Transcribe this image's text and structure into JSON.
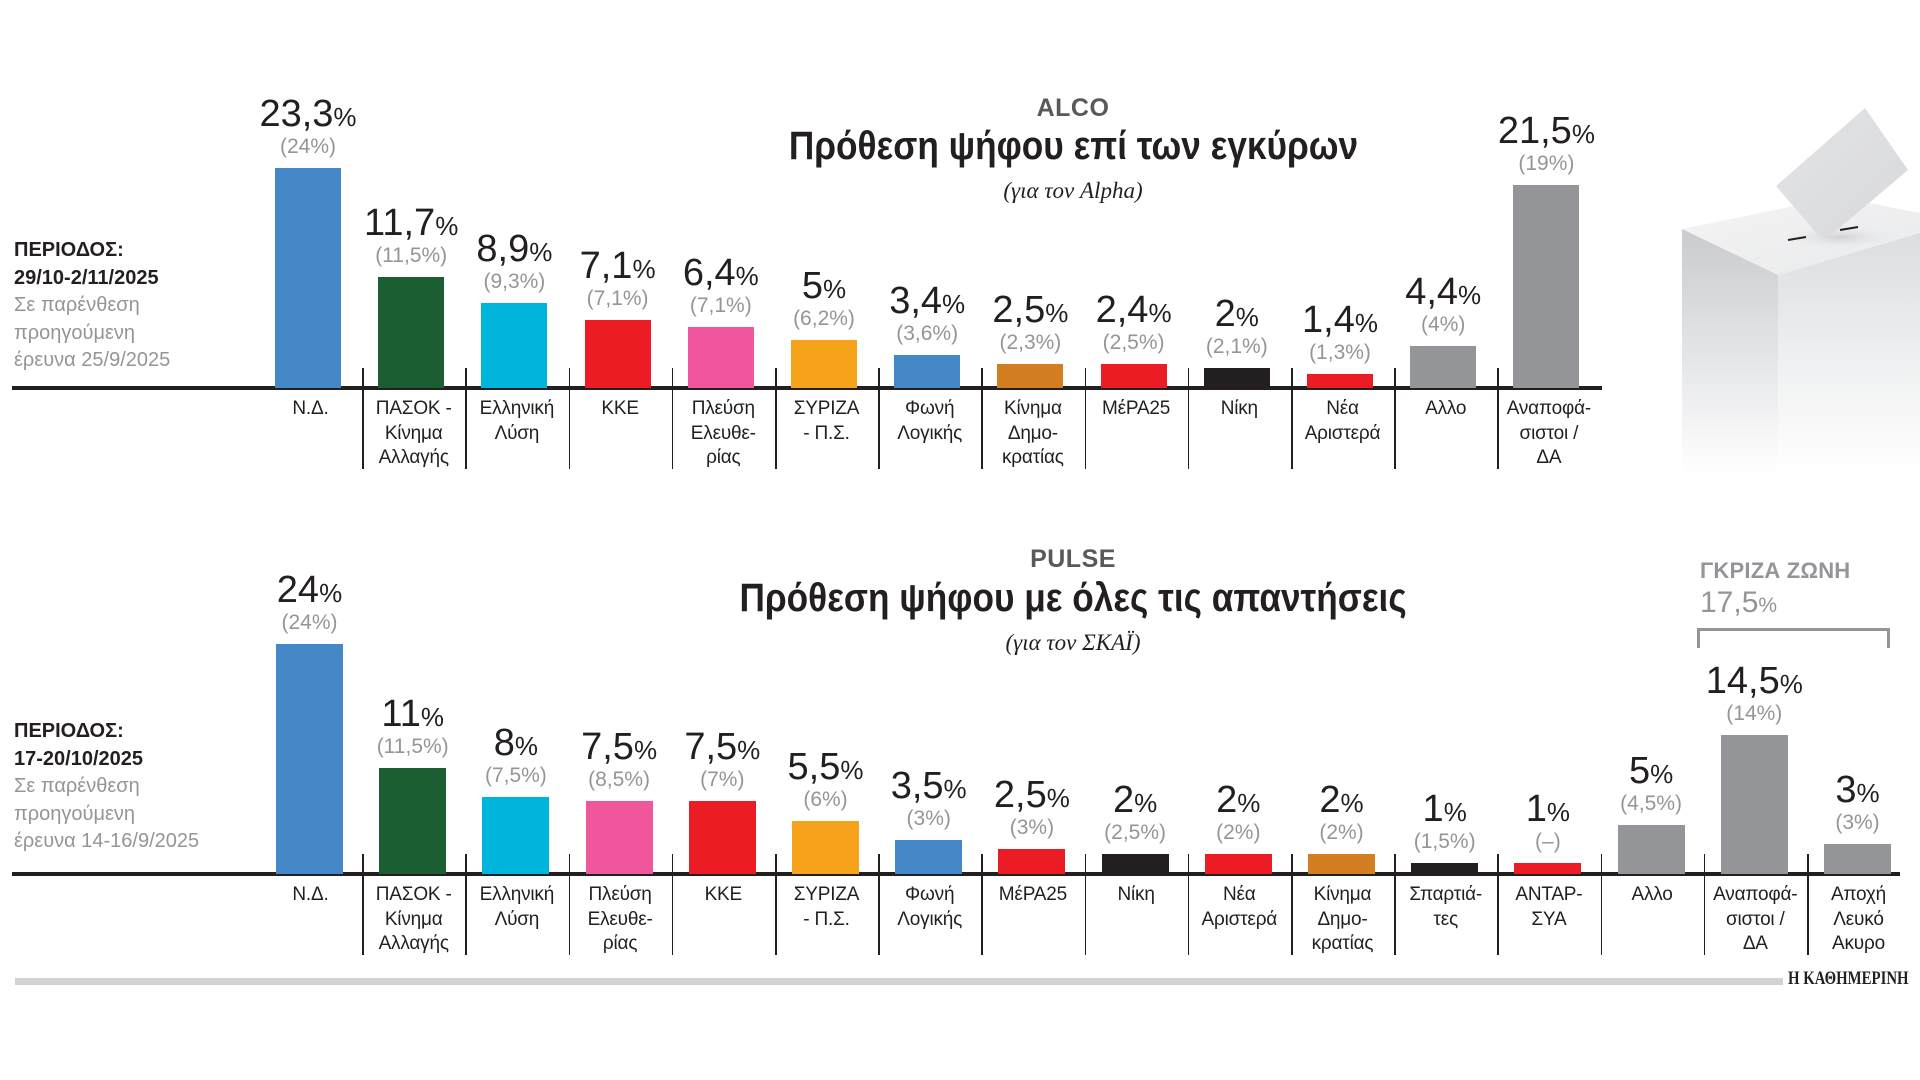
{
  "chart_data": [
    {
      "type": "bar",
      "pollster": "ALCO",
      "title": "Πρόθεση ψήφου επί των εγκύρων",
      "subtitle": "(για τον Alpha)",
      "period_heading": "ΠΕΡΙΟΔΟΣ:",
      "period_dates": "29/10-2/11/2025",
      "note_lines": [
        "Σε παρένθεση",
        "προηγούμενη",
        "έρευνα 25/9/2025"
      ],
      "xlabel": "",
      "ylabel": "",
      "ylim": [
        0,
        25
      ],
      "grid": false,
      "categories": [
        [
          "Ν.Δ."
        ],
        [
          "ΠΑΣΟΚ -",
          "Κίνημα",
          "Αλλαγής"
        ],
        [
          "Ελληνική",
          "Λύση"
        ],
        [
          "ΚΚΕ"
        ],
        [
          "Πλεύση",
          "Ελευθε-",
          "ρίας"
        ],
        [
          "ΣΥΡΙΖΑ",
          "- Π.Σ."
        ],
        [
          "Φωνή",
          "Λογικής"
        ],
        [
          "Κίνημα",
          "Δημο-",
          "κρατίας"
        ],
        [
          "ΜέΡΑ25"
        ],
        [
          "Νίκη"
        ],
        [
          "Νέα",
          "Αριστερά"
        ],
        [
          "Αλλο"
        ],
        [
          "Αναποφά-",
          "σιστοι /",
          "ΔΑ"
        ]
      ],
      "series": [
        {
          "name": "current",
          "values": [
            23.3,
            11.7,
            8.9,
            7.1,
            6.4,
            5,
            3.4,
            2.5,
            2.4,
            2,
            1.4,
            4.4,
            21.5
          ],
          "labels": [
            "23,3%",
            "11,7%",
            "8,9%",
            "7,1%",
            "6,4%",
            "5%",
            "3,4%",
            "2,5%",
            "2,4%",
            "2%",
            "1,4%",
            "4,4%",
            "21,5%"
          ]
        },
        {
          "name": "previous",
          "values": [
            24,
            11.5,
            9.3,
            7.1,
            7.1,
            6.2,
            3.6,
            2.3,
            2.5,
            2.1,
            1.3,
            4,
            19
          ],
          "labels": [
            "(24%)",
            "(11,5%)",
            "(9,3%)",
            "(7,1%)",
            "(7,1%)",
            "(6,2%)",
            "(3,6%)",
            "(2,3%)",
            "(2,5%)",
            "(2,1%)",
            "(1,3%)",
            "(4%)",
            "(19%)"
          ]
        }
      ],
      "colors": [
        "#4588c8",
        "#1a5e32",
        "#00b5dc",
        "#ec1c24",
        "#ef569c",
        "#f7a21b",
        "#4588c8",
        "#d37e20",
        "#ec1c24",
        "#231f20",
        "#ec1c24",
        "#939598",
        "#939598"
      ]
    },
    {
      "type": "bar",
      "pollster": "PULSE",
      "title": "Πρόθεση ψήφου με όλες τις απαντήσεις",
      "subtitle": "(για τον ΣΚΑΪ)",
      "period_heading": "ΠΕΡΙΟΔΟΣ:",
      "period_dates": "17-20/10/2025",
      "note_lines": [
        "Σε παρένθεση",
        "προηγούμενη",
        "έρευνα 14-16/9/2025"
      ],
      "xlabel": "",
      "ylabel": "",
      "ylim": [
        0,
        25
      ],
      "grid": false,
      "categories": [
        [
          "Ν.Δ."
        ],
        [
          "ΠΑΣΟΚ -",
          "Κίνημα",
          "Αλλαγής"
        ],
        [
          "Ελληνική",
          "Λύση"
        ],
        [
          "Πλεύση",
          "Ελευθε-",
          "ρίας"
        ],
        [
          "ΚΚΕ"
        ],
        [
          "ΣΥΡΙΖΑ",
          "- Π.Σ."
        ],
        [
          "Φωνή",
          "Λογικής"
        ],
        [
          "ΜέΡΑ25"
        ],
        [
          "Νίκη"
        ],
        [
          "Νέα",
          "Αριστερά"
        ],
        [
          "Κίνημα",
          "Δημο-",
          "κρατίας"
        ],
        [
          "Σπαρτιά-",
          "τες"
        ],
        [
          "ΑΝΤΑΡ-",
          "ΣΥΑ"
        ],
        [
          "Αλλο"
        ],
        [
          "Αναποφά-",
          "σιστοι /",
          "ΔΑ"
        ],
        [
          "Αποχή",
          "Λευκό",
          "Ακυρο"
        ]
      ],
      "series": [
        {
          "name": "current",
          "values": [
            24,
            11,
            8,
            7.5,
            7.5,
            5.5,
            3.5,
            2.5,
            2,
            2,
            2,
            1,
            1,
            5,
            14.5,
            3
          ],
          "labels": [
            "24%",
            "11%",
            "8%",
            "7,5%",
            "7,5%",
            "5,5%",
            "3,5%",
            "2,5%",
            "2%",
            "2%",
            "2%",
            "1%",
            "1%",
            "5%",
            "14,5%",
            "3%"
          ]
        },
        {
          "name": "previous",
          "values": [
            24,
            11.5,
            7.5,
            8.5,
            7,
            6,
            3,
            3,
            2.5,
            2,
            2,
            1.5,
            null,
            4.5,
            14,
            3
          ],
          "labels": [
            "(24%)",
            "(11,5%)",
            "(7,5%)",
            "(8,5%)",
            "(7%)",
            "(6%)",
            "(3%)",
            "(3%)",
            "(2,5%)",
            "(2%)",
            "(2%)",
            "(1,5%)",
            "(–)",
            "(4,5%)",
            "(14%)",
            "(3%)"
          ]
        }
      ],
      "colors": [
        "#4588c8",
        "#1a5e32",
        "#00b5dc",
        "#ef569c",
        "#ec1c24",
        "#f7a21b",
        "#4588c8",
        "#ec1c24",
        "#231f20",
        "#ec1c24",
        "#d37e20",
        "#231f20",
        "#ec1c24",
        "#939598",
        "#939598",
        "#939598"
      ],
      "annotation": {
        "title": "ΓΚΡΙΖΑ ΖΩΝΗ",
        "value": 17.5,
        "label": "17,5%"
      }
    }
  ],
  "footer": {
    "logo": "Η ΚΑΘΗΜΕΡΙΝΗ"
  }
}
